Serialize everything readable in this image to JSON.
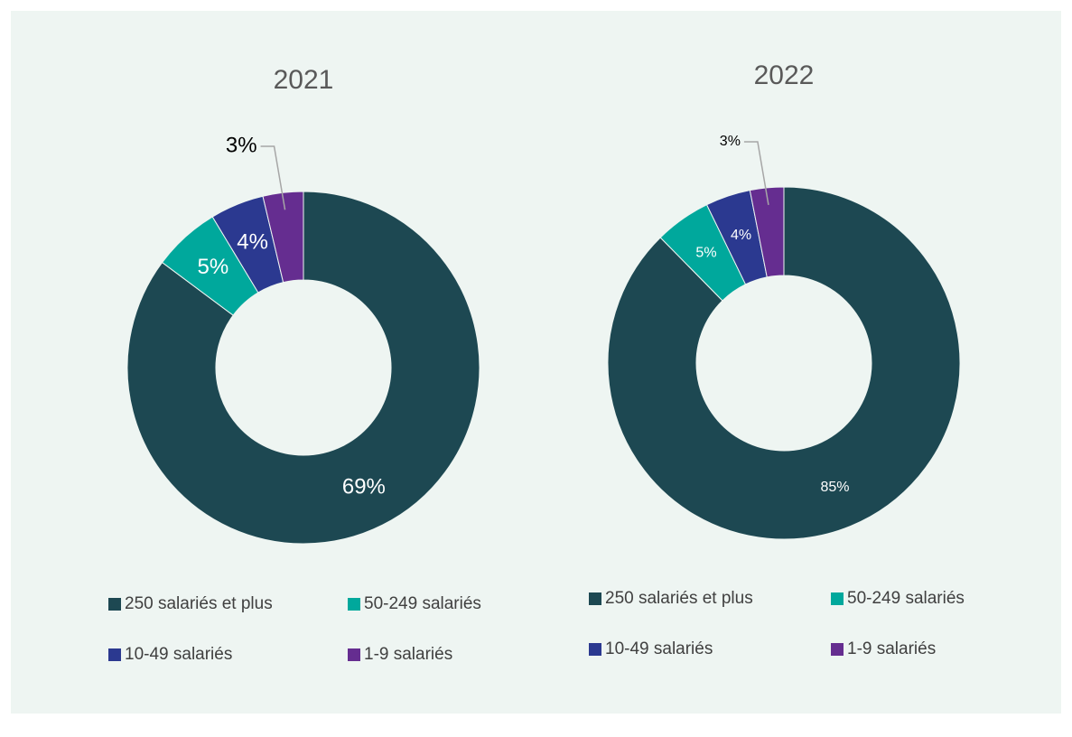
{
  "chart_data": [
    {
      "type": "donut",
      "title": "2021",
      "categories": [
        "250 salariés et plus",
        "50-249 salariés",
        "10-49 salariés",
        "1-9 salariés"
      ],
      "values": [
        69,
        5,
        4,
        3
      ],
      "value_labels": [
        "69%",
        "5%",
        "4%",
        "3%"
      ],
      "colors": [
        "#1d4852",
        "#00a89c",
        "#2b3990",
        "#652d90"
      ]
    },
    {
      "type": "donut",
      "title": "2022",
      "categories": [
        "250 salariés et plus",
        "50-249 salariés",
        "10-49 salariés",
        "1-9 salariés"
      ],
      "values": [
        85,
        5,
        4,
        3
      ],
      "value_labels": [
        "85%",
        "5%",
        "4%",
        "3%"
      ],
      "colors": [
        "#1d4852",
        "#00a89c",
        "#2b3990",
        "#652d90"
      ]
    }
  ]
}
